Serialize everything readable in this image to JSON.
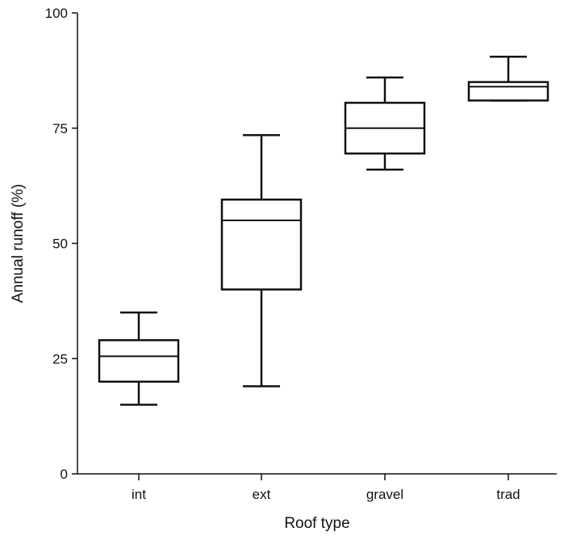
{
  "chart_data": {
    "type": "box",
    "xlabel": "Roof type",
    "ylabel": "Annual runoff (%)",
    "ylim": [
      0,
      100
    ],
    "yticks": [
      0,
      25,
      50,
      75,
      100
    ],
    "categories": [
      "int",
      "ext",
      "gravel",
      "trad"
    ],
    "boxes": [
      {
        "category": "int",
        "whisker_low": 15,
        "q1": 20,
        "median": 25.5,
        "q3": 29,
        "whisker_high": 35
      },
      {
        "category": "ext",
        "whisker_low": 19,
        "q1": 40,
        "median": 55,
        "q3": 59.5,
        "whisker_high": 73.5
      },
      {
        "category": "gravel",
        "whisker_low": 66,
        "q1": 69.5,
        "median": 75,
        "q3": 80.5,
        "whisker_high": 86
      },
      {
        "category": "trad",
        "whisker_low": 81,
        "q1": 81,
        "median": 84,
        "q3": 85,
        "whisker_high": 90.5
      }
    ],
    "grid": false,
    "legend": "none",
    "colors": {
      "stroke": "#111111",
      "fill": "#ffffff"
    }
  }
}
